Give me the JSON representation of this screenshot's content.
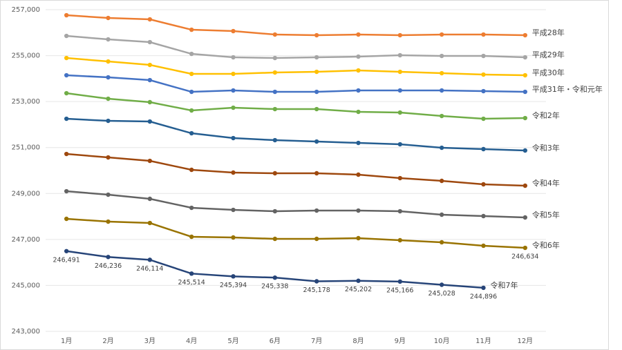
{
  "chart_data": {
    "type": "line",
    "categories": [
      "1月",
      "2月",
      "3月",
      "4月",
      "5月",
      "6月",
      "7月",
      "8月",
      "9月",
      "10月",
      "11月",
      "12月"
    ],
    "ylim": [
      243000,
      257000
    ],
    "yticks": [
      {
        "value": 243000,
        "label": "243,000"
      },
      {
        "value": 245000,
        "label": "245,000"
      },
      {
        "value": 247000,
        "label": "247,000"
      },
      {
        "value": 249000,
        "label": "249,000"
      },
      {
        "value": 251000,
        "label": "251,000"
      },
      {
        "value": 253000,
        "label": "253,000"
      },
      {
        "value": 255000,
        "label": "255,000"
      },
      {
        "value": 257000,
        "label": "257,000"
      }
    ],
    "grid": true,
    "series": [
      {
        "name": "平成28年",
        "color": "#ed7d31",
        "values": [
          256758,
          256638,
          256578,
          256127,
          256067,
          255917,
          255887,
          255917,
          255887,
          255917,
          255917,
          255887
        ]
      },
      {
        "name": "平成29年",
        "color": "#a5a5a5",
        "values": [
          255857,
          255707,
          255587,
          255076,
          254926,
          254896,
          254926,
          254956,
          255016,
          254986,
          254986,
          254926
        ]
      },
      {
        "name": "平成30年",
        "color": "#ffc000",
        "values": [
          254896,
          254746,
          254596,
          254205,
          254205,
          254265,
          254295,
          254355,
          254295,
          254235,
          254175,
          254145
        ]
      },
      {
        "name": "平成31年・令和元年",
        "color": "#4472c4",
        "values": [
          254145,
          254055,
          253935,
          253424,
          253484,
          253424,
          253424,
          253484,
          253484,
          253484,
          253454,
          253424
        ]
      },
      {
        "name": "令和2年",
        "color": "#70ad47",
        "values": [
          253364,
          253124,
          252974,
          252613,
          252733,
          252673,
          252673,
          252553,
          252523,
          252373,
          252252,
          252282
        ]
      },
      {
        "name": "令和3年",
        "color": "#255e91",
        "values": [
          252252,
          252162,
          252132,
          251621,
          251411,
          251321,
          251261,
          251201,
          251141,
          250991,
          250931,
          250871
        ]
      },
      {
        "name": "令和4年",
        "color": "#9e480e",
        "values": [
          250720,
          250570,
          250420,
          250030,
          249910,
          249880,
          249880,
          249820,
          249669,
          249549,
          249399,
          249339
        ]
      },
      {
        "name": "令和5年",
        "color": "#636363",
        "values": [
          249098,
          248948,
          248768,
          248377,
          248287,
          248227,
          248257,
          248257,
          248227,
          248077,
          248017,
          247957
        ]
      },
      {
        "name": "令和6年",
        "color": "#997300",
        "values": [
          247897,
          247776,
          247716,
          247116,
          247086,
          247026,
          247026,
          247056,
          246966,
          246876,
          246726,
          246634
        ],
        "value_labels": [
          null,
          null,
          null,
          null,
          null,
          null,
          null,
          null,
          null,
          null,
          null,
          "246,634"
        ]
      },
      {
        "name": "令和7年",
        "color": "#264478",
        "values": [
          246491,
          246236,
          246114,
          245514,
          245394,
          245338,
          245178,
          245202,
          245166,
          245028,
          244896,
          null
        ],
        "value_labels": [
          "246,491",
          "246,236",
          "246,114",
          "245,514",
          "245,394",
          "245,338",
          "245,178",
          "245,202",
          "245,166",
          "245,028",
          "244,896",
          null
        ]
      }
    ]
  }
}
